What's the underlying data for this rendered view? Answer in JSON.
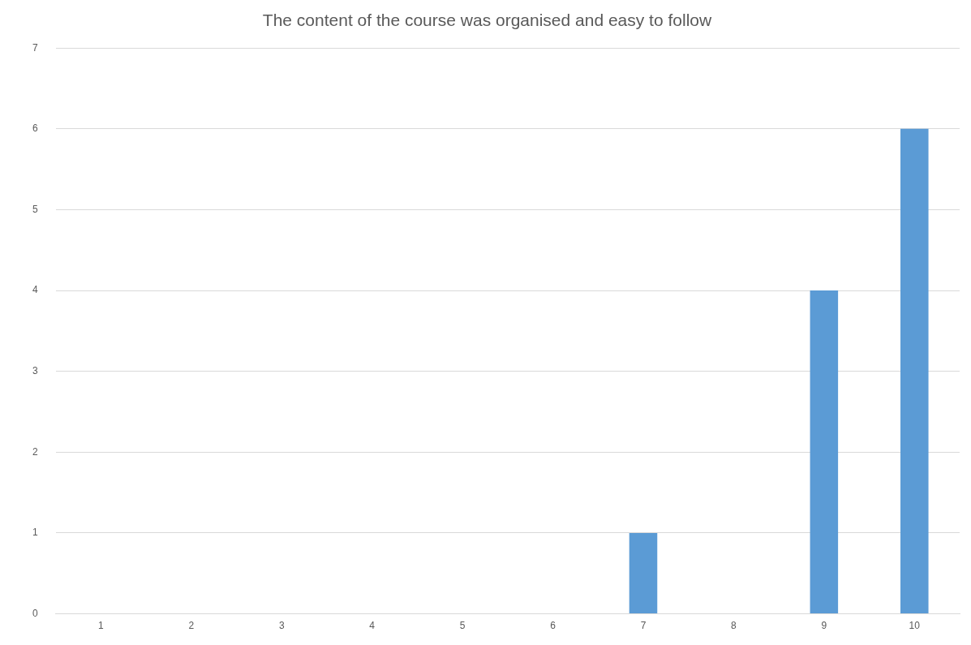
{
  "chart_data": {
    "type": "bar",
    "title": "The content of the course was organised and easy to follow",
    "categories": [
      "1",
      "2",
      "3",
      "4",
      "5",
      "6",
      "7",
      "8",
      "9",
      "10"
    ],
    "values": [
      0,
      0,
      0,
      0,
      0,
      0,
      1,
      0,
      4,
      6
    ],
    "color": "#5b9bd5",
    "ylim": [
      0,
      7
    ],
    "yticks": [
      0,
      1,
      2,
      3,
      4,
      5,
      6,
      7
    ],
    "grid": "y",
    "legend": false
  }
}
